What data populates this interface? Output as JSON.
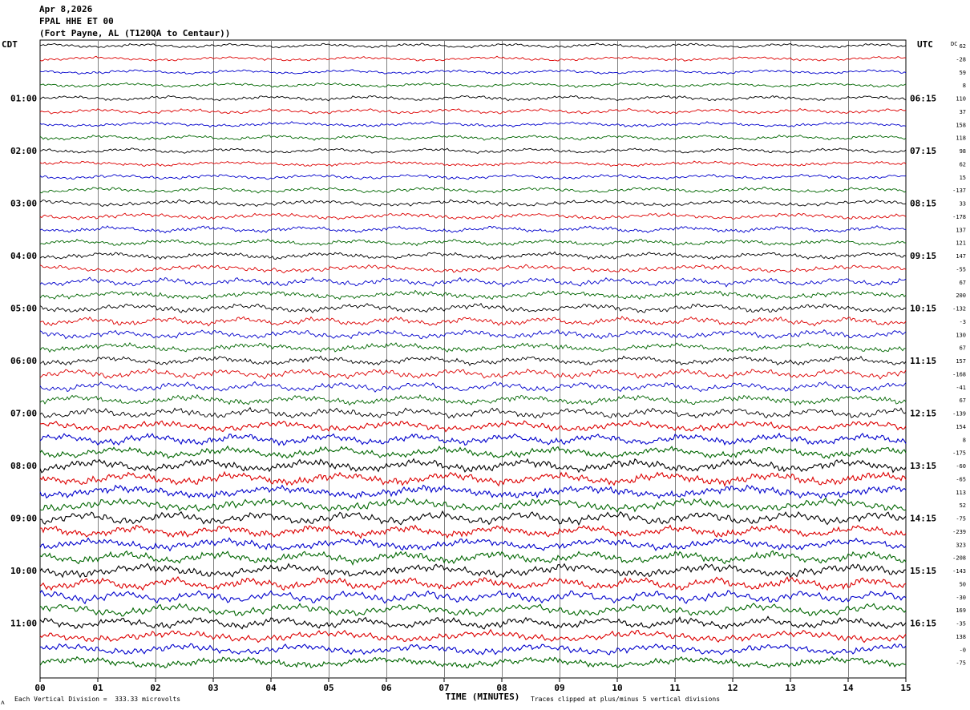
{
  "header": {
    "date": "Apr 8,2026",
    "station": "FPAL HHE ET 00",
    "location": "(Fort Payne, AL (T120QA to Centaur))"
  },
  "left_tz": "CDT",
  "right_tz": "UTC",
  "dc_label": "DC",
  "footer": {
    "xlabel": "TIME (MINUTES)",
    "scale_note": "Each Vertical Division =  333.33 microvolts",
    "clip_note": "Traces clipped at plus/minus 5 vertical divisions",
    "corner_mark": "ᴧ"
  },
  "colors": {
    "trace_cycle": [
      "#000000",
      "#dd0000",
      "#0000cc",
      "#006600"
    ],
    "grid": "#808080"
  },
  "chart_data": {
    "type": "line",
    "x_range": [
      0,
      15
    ],
    "x_ticks": [
      "00",
      "01",
      "02",
      "03",
      "04",
      "05",
      "06",
      "07",
      "08",
      "09",
      "10",
      "11",
      "12",
      "13",
      "14",
      "15"
    ],
    "trace_count": 48,
    "minutes_per_trace": 15,
    "left_hour_labels": [
      "01:00",
      "02:00",
      "03:00",
      "04:00",
      "05:00",
      "06:00",
      "07:00",
      "08:00",
      "09:00",
      "10:00",
      "11:00"
    ],
    "right_hour_labels": [
      "06:15",
      "07:15",
      "08:15",
      "09:15",
      "10:15",
      "11:15",
      "12:15",
      "13:15",
      "14:15",
      "15:15",
      "16:15"
    ],
    "dc_offsets": [
      "62",
      "-28",
      "59",
      "8",
      "110",
      "37",
      "158",
      "118",
      "98",
      "62",
      "15",
      "-137",
      "33",
      "-178",
      "137",
      "121",
      "147",
      "-55",
      "67",
      "200",
      "-132",
      "-3",
      "130",
      "67",
      "157",
      "-168",
      "-41",
      "67",
      "-139",
      "154",
      "8",
      "-175",
      "-60",
      "-65",
      "113",
      "52",
      "-75",
      "-239",
      "323",
      "-208",
      "-143",
      "50",
      "-30",
      "169",
      "-35",
      "138",
      "-0",
      "-75"
    ],
    "amplitude_level": [
      0.35,
      0.35,
      0.35,
      0.35,
      0.4,
      0.4,
      0.4,
      0.4,
      0.4,
      0.4,
      0.4,
      0.45,
      0.5,
      0.5,
      0.5,
      0.5,
      0.55,
      0.6,
      0.65,
      0.65,
      0.7,
      0.7,
      0.7,
      0.7,
      0.7,
      0.75,
      0.75,
      0.75,
      0.8,
      0.85,
      0.9,
      0.9,
      1.0,
      1.0,
      1.0,
      1.0,
      1.0,
      0.95,
      0.95,
      1.0,
      1.0,
      1.0,
      0.95,
      0.95,
      0.9,
      0.9,
      0.85,
      0.85
    ]
  }
}
